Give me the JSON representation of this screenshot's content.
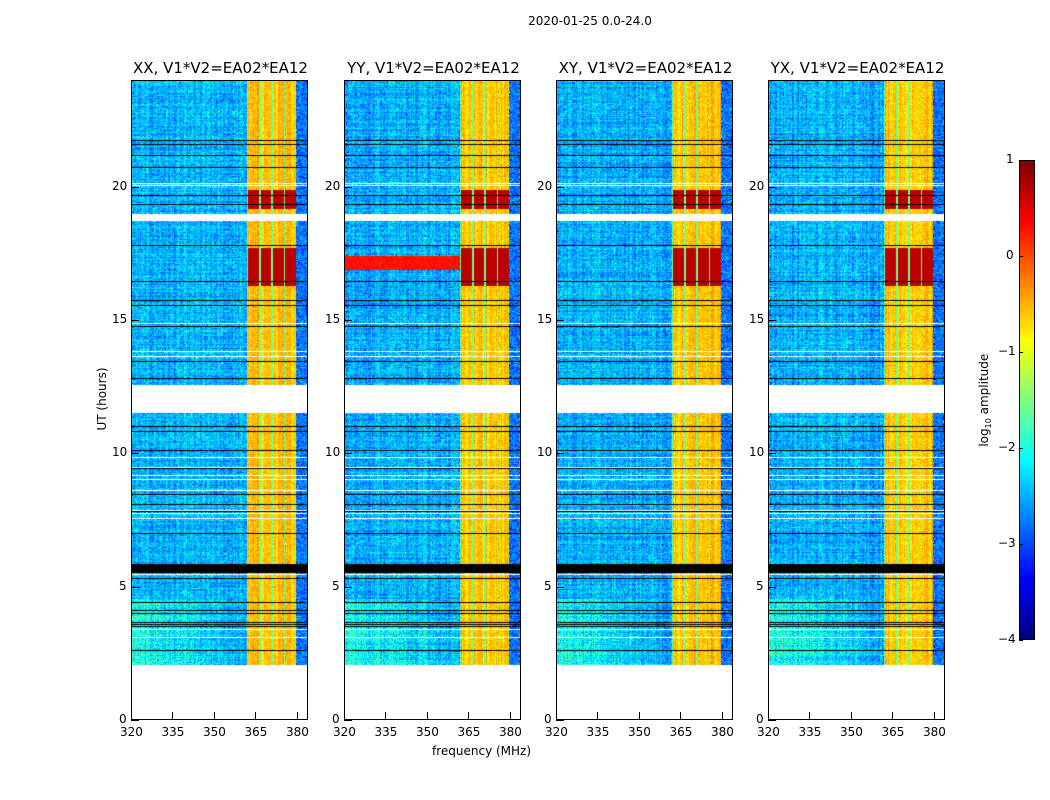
{
  "chart_data": {
    "type": "heatmap",
    "title": "2020-01-25 0.0-24.0",
    "xlabel": "frequency (MHz)",
    "ylabel": "UT (hours)",
    "xlim": [
      320,
      384
    ],
    "ylim": [
      0,
      24
    ],
    "xticks": [
      320,
      335,
      350,
      365,
      380
    ],
    "yticks": [
      0,
      5,
      10,
      15,
      20
    ],
    "panels": [
      {
        "title": "XX, V1*V2=EA02*EA12"
      },
      {
        "title": "YY, V1*V2=EA02*EA12"
      },
      {
        "title": "XY, V1*V2=EA02*EA12"
      },
      {
        "title": "YX, V1*V2=EA02*EA12"
      }
    ],
    "colorbar": {
      "label_prefix": "log",
      "label_sub": "10",
      "label_suffix": " amplitude",
      "range": [
        -4,
        1
      ],
      "ticks": [
        1,
        0,
        -1,
        -2,
        -3,
        -4
      ],
      "tick_labels": [
        "1",
        "0",
        "−1",
        "−2",
        "−3",
        "−4"
      ],
      "colormap": "jet"
    },
    "features": {
      "data_start_hour": 2.1,
      "data_end_hour": 24,
      "gaps_hours": [
        [
          11.55,
          12.6
        ],
        [
          18.75,
          19.0
        ]
      ],
      "flagged_band_hours": [
        5.55,
        5.9
      ],
      "background_log_amplitude": -2.5,
      "rfi_band_mhz": [
        362,
        380
      ],
      "rfi_log_amplitude": -0.7,
      "strong_rfi_hours": [
        [
          16.3,
          17.7
        ],
        [
          19.2,
          19.9
        ]
      ],
      "strong_rfi_log_amplitude": 0.7
    }
  }
}
